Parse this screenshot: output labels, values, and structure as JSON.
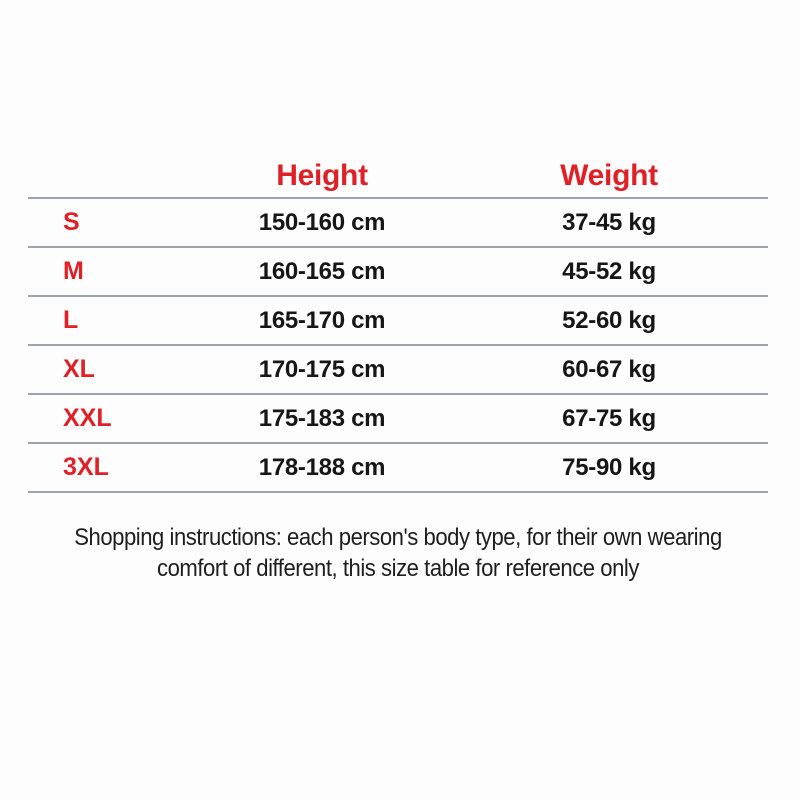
{
  "table": {
    "header": {
      "size_label": "",
      "height_label": "Height",
      "weight_label": "Weight"
    },
    "rows": [
      {
        "size": "S",
        "height": "150-160 cm",
        "weight": "37-45 kg"
      },
      {
        "size": "M",
        "height": "160-165 cm",
        "weight": "45-52 kg"
      },
      {
        "size": "L",
        "height": "165-170 cm",
        "weight": "52-60 kg"
      },
      {
        "size": "XL",
        "height": "170-175 cm",
        "weight": "60-67 kg"
      },
      {
        "size": "XXL",
        "height": "175-183 cm",
        "weight": "67-75 kg"
      },
      {
        "size": "3XL",
        "height": "178-188 cm",
        "weight": "75-90 kg"
      }
    ]
  },
  "footer": {
    "line1": "Shopping instructions: each person's body type, for their own wearing",
    "line2": "comfort of different, this size table for reference only"
  },
  "colors": {
    "accent_red": "#df2026",
    "divider_gray": "#9da3ab",
    "text_black": "#161616"
  }
}
